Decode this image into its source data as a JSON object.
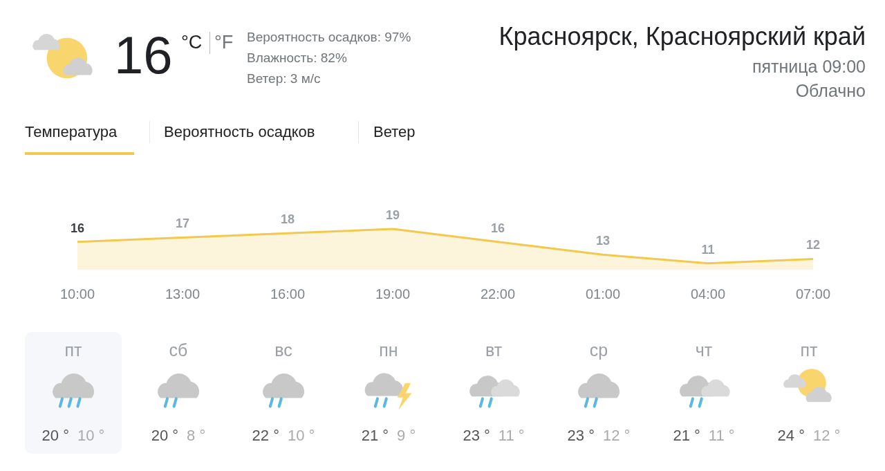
{
  "chart_data": {
    "type": "area",
    "title": "Красноярск, Красноярский край",
    "subtitle": "пятница 09:00",
    "categories": [
      "10:00",
      "13:00",
      "16:00",
      "19:00",
      "22:00",
      "01:00",
      "04:00",
      "07:00"
    ],
    "values": [
      16,
      17,
      18,
      19,
      16,
      13,
      11,
      12
    ],
    "color": "#f2c94c",
    "data_labels": true,
    "grid": false,
    "legend": false,
    "tick_labels": "x",
    "annotations": [
      "16",
      "°C",
      "°F",
      "Вероятность осадков: 97%",
      "Влажность: 82%",
      "Ветер: 3 м/с",
      "Облачно",
      "Температура",
      "Вероятность осадков",
      "Ветер",
      "пт",
      "20 °",
      "10 °",
      "сб",
      "20 °",
      "8 °",
      "вс",
      "22 °",
      "10 °",
      "пн",
      "21 °",
      "9 °",
      "вт",
      "23 °",
      "11 °",
      "ср",
      "23 °",
      "12 °",
      "чт",
      "21 °",
      "11 °",
      "пт",
      "24 °",
      "12 °"
    ]
  }
}
